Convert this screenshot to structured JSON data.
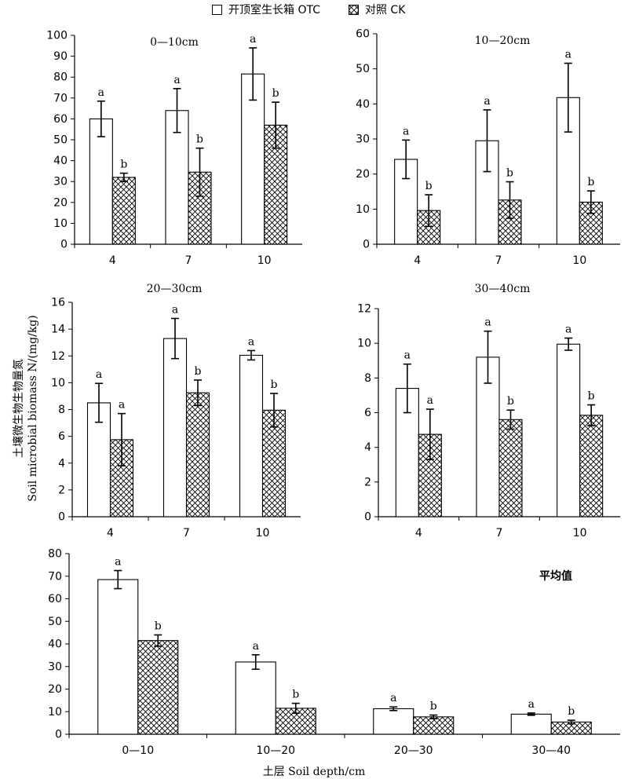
{
  "legend": {
    "otc": "开顶室生长箱 OTC",
    "ck": "对照 CK"
  },
  "ylabel_cn": "土壤微生物生物量氮",
  "ylabel_en": "Soil microbial biomass N/(mg/kg)",
  "xlabel": "土层 Soil depth/cm",
  "colors": {
    "otc_fill": "#ffffff",
    "ck_hatch": "#000000",
    "stroke": "#000000"
  },
  "chart_data": [
    {
      "type": "bar",
      "title": "0—10cm",
      "categories": [
        "4",
        "7",
        "10"
      ],
      "ylim": [
        0,
        100
      ],
      "yticks": [
        0,
        10,
        20,
        30,
        40,
        50,
        60,
        70,
        80,
        90,
        100
      ],
      "series": [
        {
          "name": "开顶室生长箱 OTC",
          "values": [
            60,
            64,
            81.5
          ],
          "errors": [
            8.5,
            10.5,
            12.5
          ],
          "letters": [
            "a",
            "a",
            "a"
          ]
        },
        {
          "name": "对照 CK",
          "values": [
            32,
            34.5,
            57
          ],
          "errors": [
            2,
            11.5,
            11
          ],
          "letters": [
            "b",
            "b",
            "b"
          ]
        }
      ]
    },
    {
      "type": "bar",
      "title": "10—20cm",
      "categories": [
        "4",
        "7",
        "10"
      ],
      "ylim": [
        0,
        60
      ],
      "yticks": [
        0,
        10,
        20,
        30,
        40,
        50,
        60
      ],
      "series": [
        {
          "name": "开顶室生长箱 OTC",
          "values": [
            24.2,
            29.5,
            41.8
          ],
          "errors": [
            5.5,
            8.8,
            9.8
          ],
          "letters": [
            "a",
            "a",
            "a"
          ]
        },
        {
          "name": "对照 CK",
          "values": [
            9.6,
            12.6,
            12
          ],
          "errors": [
            4.5,
            5.2,
            3.2
          ],
          "letters": [
            "b",
            "b",
            "b"
          ]
        }
      ]
    },
    {
      "type": "bar",
      "title": "20—30cm",
      "categories": [
        "4",
        "7",
        "10"
      ],
      "ylim": [
        0,
        16
      ],
      "yticks": [
        0,
        2,
        4,
        6,
        8,
        10,
        12,
        14,
        16
      ],
      "series": [
        {
          "name": "开顶室生长箱 OTC",
          "values": [
            8.5,
            13.3,
            12.05
          ],
          "errors": [
            1.45,
            1.5,
            0.35
          ],
          "letters": [
            "a",
            "a",
            "a"
          ]
        },
        {
          "name": "对照 CK",
          "values": [
            5.75,
            9.25,
            7.95
          ],
          "errors": [
            1.95,
            0.95,
            1.25
          ],
          "letters": [
            "a",
            "b",
            "b"
          ]
        }
      ]
    },
    {
      "type": "bar",
      "title": "30—40cm",
      "categories": [
        "4",
        "7",
        "10"
      ],
      "ylim": [
        0,
        12
      ],
      "yticks": [
        0,
        2,
        4,
        6,
        8,
        10,
        12
      ],
      "series": [
        {
          "name": "开顶室生长箱 OTC",
          "values": [
            7.4,
            9.2,
            9.95
          ],
          "errors": [
            1.4,
            1.5,
            0.35
          ],
          "letters": [
            "a",
            "a",
            "a"
          ]
        },
        {
          "name": "对照 CK",
          "values": [
            4.75,
            5.6,
            5.85
          ],
          "errors": [
            1.45,
            0.55,
            0.6
          ],
          "letters": [
            "a",
            "b",
            "b"
          ]
        }
      ]
    },
    {
      "type": "bar",
      "title": "平均值",
      "categories": [
        "0—10",
        "10—20",
        "20—30",
        "30—40"
      ],
      "ylim": [
        0,
        80
      ],
      "yticks": [
        0,
        10,
        20,
        30,
        40,
        50,
        60,
        70,
        80
      ],
      "series": [
        {
          "name": "开顶室生长箱 OTC",
          "values": [
            68.5,
            32,
            11.3,
            8.9
          ],
          "errors": [
            4,
            3.2,
            0.8,
            0.5
          ],
          "letters": [
            "a",
            "a",
            "a",
            "a"
          ]
        },
        {
          "name": "对照 CK",
          "values": [
            41.5,
            11.5,
            7.7,
            5.4
          ],
          "errors": [
            2.5,
            2.2,
            0.8,
            0.8
          ],
          "letters": [
            "b",
            "b",
            "b",
            "b"
          ]
        }
      ]
    }
  ]
}
